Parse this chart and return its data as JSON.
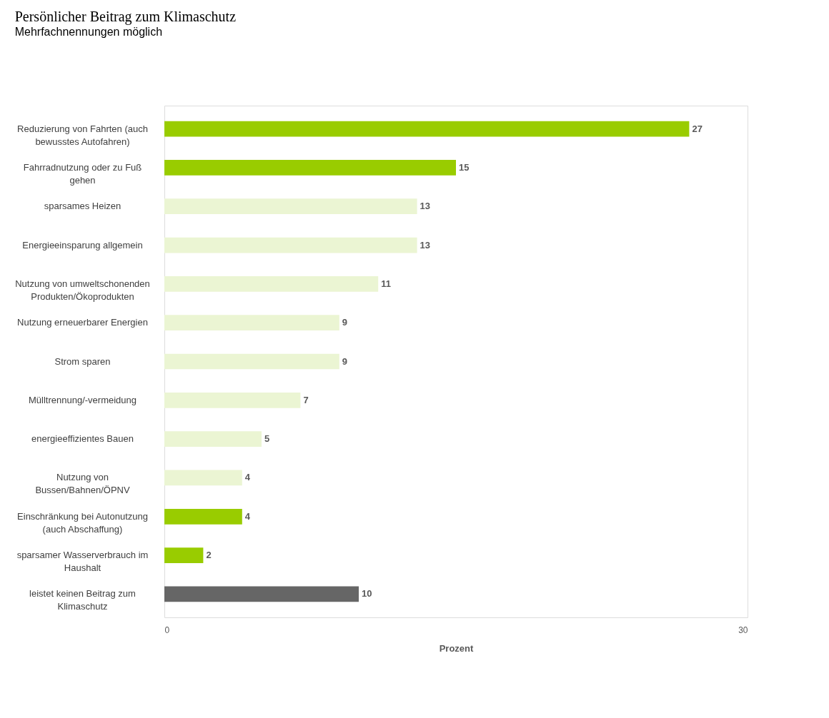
{
  "chart_data": {
    "type": "bar",
    "orientation": "horizontal",
    "title": "Persönlicher Beitrag zum Klimaschutz",
    "subtitle": "Mehrfachnennungen möglich",
    "xlabel": "Prozent",
    "categories": [
      "Reduzierung von Fahrten (auch bewusstes Autofahren)",
      "Fahrradnutzung oder zu Fuß gehen",
      "sparsames Heizen",
      "Energieeinsparung allgemein",
      "Nutzung von umweltschonenden Produkten/Ökoprodukten",
      "Nutzung erneuerbarer Energien",
      "Strom sparen",
      "Mülltrennung/-vermeidung",
      "energieeffizientes Bauen",
      "Nutzung von Bussen/Bahnen/ÖPNV",
      "Einschränkung bei Autonutzung (auch Abschaffung)",
      "sparsamer Wasserverbrauch im Haushalt",
      "leistet keinen Beitrag zum Klimaschutz"
    ],
    "values": [
      27,
      15,
      13,
      13,
      11,
      9,
      9,
      7,
      5,
      4,
      4,
      2,
      10
    ],
    "colors": [
      "#99cc00",
      "#99cc00",
      "#ebf5d3",
      "#ebf5d3",
      "#ebf5d3",
      "#ebf5d3",
      "#ebf5d3",
      "#ebf5d3",
      "#ebf5d3",
      "#ebf5d3",
      "#99cc00",
      "#99cc00",
      "#666666"
    ],
    "xlim": [
      0,
      30
    ],
    "xticks": [
      0,
      30
    ],
    "data_labels": true
  }
}
